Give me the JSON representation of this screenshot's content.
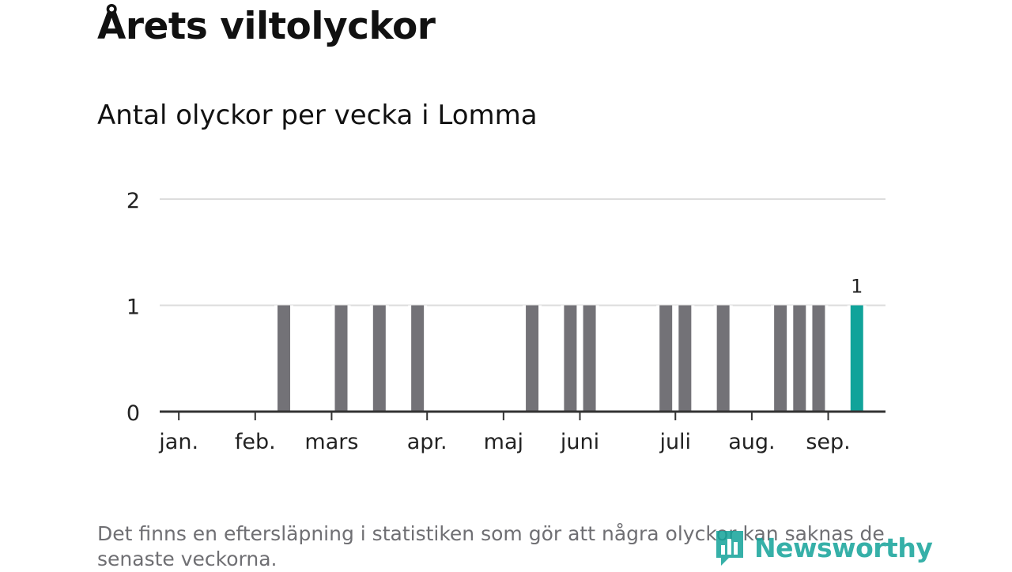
{
  "header": {
    "title": "Årets viltolyckor",
    "subtitle": "Antal olyckor per vecka i Lomma"
  },
  "footnote": "Det finns en eftersläpning i statistiken som gör att några olyckor kan saknas de senaste veckorna.",
  "logo": {
    "text": "Newsworthy",
    "icon": "bar-chart-logo-icon"
  },
  "colors": {
    "bar": "#737277",
    "highlight": "#10a39a",
    "grid": "#dddddd",
    "axis": "#333333",
    "text": "#222222"
  },
  "chart_data": {
    "type": "bar",
    "title": "",
    "xlabel": "",
    "ylabel": "",
    "ylim": [
      0,
      2
    ],
    "yticks": [
      0,
      1,
      2
    ],
    "grid": true,
    "x_domain": [
      1,
      38
    ],
    "x": [
      1,
      2,
      3,
      4,
      5,
      6,
      7,
      8,
      9,
      10,
      11,
      12,
      13,
      14,
      15,
      16,
      17,
      18,
      19,
      20,
      21,
      22,
      23,
      24,
      25,
      26,
      27,
      28,
      29,
      30,
      31,
      32,
      33,
      34,
      35,
      36,
      37
    ],
    "values": [
      0,
      0,
      0,
      0,
      0,
      0,
      1,
      0,
      0,
      1,
      0,
      1,
      0,
      1,
      0,
      0,
      0,
      0,
      0,
      1,
      0,
      1,
      1,
      0,
      0,
      0,
      1,
      1,
      0,
      1,
      0,
      0,
      1,
      1,
      1,
      0,
      1
    ],
    "highlight_index": 37,
    "highlight_value": 1,
    "highlight_label": "1",
    "month_labels": [
      {
        "label": "jan.",
        "x": 1.5
      },
      {
        "label": "feb.",
        "x": 5.5
      },
      {
        "label": "mars",
        "x": 9.5
      },
      {
        "label": "apr.",
        "x": 14.5
      },
      {
        "label": "maj",
        "x": 18.5
      },
      {
        "label": "juni",
        "x": 22.5
      },
      {
        "label": "juli",
        "x": 27.5
      },
      {
        "label": "aug.",
        "x": 31.5
      },
      {
        "label": "sep.",
        "x": 35.5
      }
    ]
  }
}
